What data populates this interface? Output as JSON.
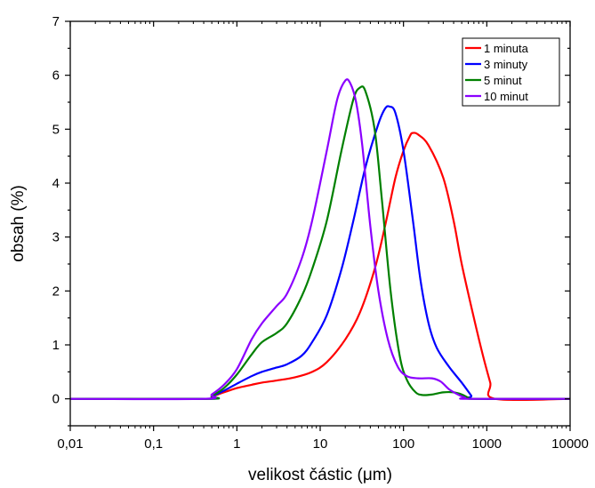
{
  "chart_data": {
    "type": "line",
    "xlabel": "velikost částic (μm)",
    "ylabel": "obsah (%)",
    "x_scale": "log",
    "xlim": [
      0.01,
      10000
    ],
    "ylim": [
      -0.5,
      7
    ],
    "x_ticks": [
      {
        "value": 0.01,
        "label": "0,01"
      },
      {
        "value": 0.1,
        "label": "0,1"
      },
      {
        "value": 1,
        "label": "1"
      },
      {
        "value": 10,
        "label": "10"
      },
      {
        "value": 100,
        "label": "100"
      },
      {
        "value": 1000,
        "label": "1000"
      },
      {
        "value": 10000,
        "label": "10000"
      }
    ],
    "y_ticks": [
      {
        "value": 0,
        "label": "0"
      },
      {
        "value": 1,
        "label": "1"
      },
      {
        "value": 2,
        "label": "2"
      },
      {
        "value": 3,
        "label": "3"
      },
      {
        "value": 4,
        "label": "4"
      },
      {
        "value": 5,
        "label": "5"
      },
      {
        "value": 6,
        "label": "6"
      },
      {
        "value": 7,
        "label": "7"
      }
    ],
    "grid": false,
    "legend_position": "top-right",
    "series": [
      {
        "name": "1 minuta",
        "color": "#ff0000",
        "points": [
          [
            0.01,
            0
          ],
          [
            0.4,
            0
          ],
          [
            0.5,
            0.04
          ],
          [
            0.7,
            0.12
          ],
          [
            1,
            0.2
          ],
          [
            1.5,
            0.26
          ],
          [
            2,
            0.3
          ],
          [
            3,
            0.34
          ],
          [
            5,
            0.4
          ],
          [
            8,
            0.5
          ],
          [
            12,
            0.68
          ],
          [
            20,
            1.1
          ],
          [
            30,
            1.6
          ],
          [
            45,
            2.4
          ],
          [
            60,
            3.2
          ],
          [
            80,
            4.1
          ],
          [
            100,
            4.6
          ],
          [
            120,
            4.88
          ],
          [
            130,
            4.93
          ],
          [
            150,
            4.9
          ],
          [
            200,
            4.7
          ],
          [
            300,
            4.1
          ],
          [
            400,
            3.3
          ],
          [
            500,
            2.5
          ],
          [
            700,
            1.5
          ],
          [
            900,
            0.8
          ],
          [
            1100,
            0.3
          ],
          [
            1250,
            0
          ],
          [
            10000,
            0
          ]
        ]
      },
      {
        "name": "3 minuty",
        "color": "#0000ff",
        "points": [
          [
            0.01,
            0
          ],
          [
            0.45,
            0
          ],
          [
            0.5,
            0.04
          ],
          [
            0.7,
            0.15
          ],
          [
            1,
            0.28
          ],
          [
            1.5,
            0.42
          ],
          [
            2,
            0.5
          ],
          [
            3,
            0.58
          ],
          [
            4,
            0.64
          ],
          [
            6,
            0.8
          ],
          [
            8,
            1.05
          ],
          [
            12,
            1.55
          ],
          [
            18,
            2.4
          ],
          [
            25,
            3.3
          ],
          [
            35,
            4.3
          ],
          [
            50,
            5.1
          ],
          [
            60,
            5.38
          ],
          [
            68,
            5.42
          ],
          [
            80,
            5.3
          ],
          [
            100,
            4.6
          ],
          [
            130,
            3.3
          ],
          [
            160,
            2.2
          ],
          [
            200,
            1.4
          ],
          [
            250,
            0.95
          ],
          [
            350,
            0.6
          ],
          [
            500,
            0.3
          ],
          [
            650,
            0.06
          ],
          [
            700,
            0
          ],
          [
            10000,
            0
          ]
        ]
      },
      {
        "name": "5 minut",
        "color": "#008000",
        "points": [
          [
            0.01,
            0
          ],
          [
            0.45,
            0
          ],
          [
            0.5,
            0.05
          ],
          [
            0.7,
            0.2
          ],
          [
            1,
            0.45
          ],
          [
            1.5,
            0.82
          ],
          [
            2,
            1.05
          ],
          [
            3,
            1.22
          ],
          [
            4,
            1.4
          ],
          [
            6,
            1.9
          ],
          [
            8,
            2.4
          ],
          [
            12,
            3.3
          ],
          [
            18,
            4.6
          ],
          [
            25,
            5.55
          ],
          [
            30,
            5.77
          ],
          [
            35,
            5.7
          ],
          [
            45,
            5.0
          ],
          [
            55,
            3.7
          ],
          [
            70,
            2.0
          ],
          [
            90,
            0.8
          ],
          [
            110,
            0.35
          ],
          [
            140,
            0.12
          ],
          [
            170,
            0.07
          ],
          [
            220,
            0.08
          ],
          [
            300,
            0.12
          ],
          [
            400,
            0.12
          ],
          [
            500,
            0.08
          ],
          [
            600,
            0.02
          ],
          [
            700,
            0
          ],
          [
            10000,
            0
          ]
        ]
      },
      {
        "name": "10 minut",
        "color": "#8b00ff",
        "points": [
          [
            0.01,
            0
          ],
          [
            0.4,
            0
          ],
          [
            0.5,
            0.08
          ],
          [
            0.7,
            0.26
          ],
          [
            1,
            0.55
          ],
          [
            1.5,
            1.1
          ],
          [
            2,
            1.4
          ],
          [
            3,
            1.72
          ],
          [
            4,
            1.95
          ],
          [
            6,
            2.6
          ],
          [
            8,
            3.3
          ],
          [
            12,
            4.6
          ],
          [
            16,
            5.55
          ],
          [
            20,
            5.9
          ],
          [
            23,
            5.85
          ],
          [
            27,
            5.5
          ],
          [
            32,
            4.7
          ],
          [
            40,
            3.2
          ],
          [
            50,
            2.0
          ],
          [
            65,
            1.1
          ],
          [
            85,
            0.6
          ],
          [
            110,
            0.42
          ],
          [
            150,
            0.38
          ],
          [
            220,
            0.38
          ],
          [
            280,
            0.32
          ],
          [
            350,
            0.18
          ],
          [
            450,
            0.08
          ],
          [
            550,
            0.02
          ],
          [
            600,
            0
          ],
          [
            10000,
            0
          ]
        ]
      }
    ]
  }
}
